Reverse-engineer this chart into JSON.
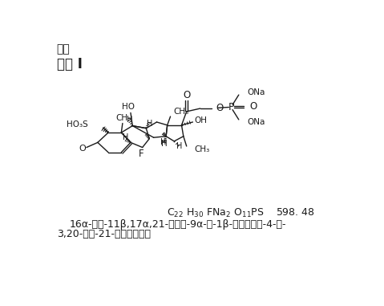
{
  "bg_color": "#ffffff",
  "title_line": "附：",
  "subtitle_line": "杂质 I",
  "name_line1": "16α-甲基-11β,17α,21-三羟基-9α-氟-1β-磺酸基孕甾-4-烯-",
  "name_line2": "3,20-二酮-21-磷酸酯二钠盐",
  "text_color": "#1a1a1a",
  "font_size_header": 10,
  "font_size_subtitle": 12,
  "font_size_formula": 9,
  "font_size_name": 9
}
